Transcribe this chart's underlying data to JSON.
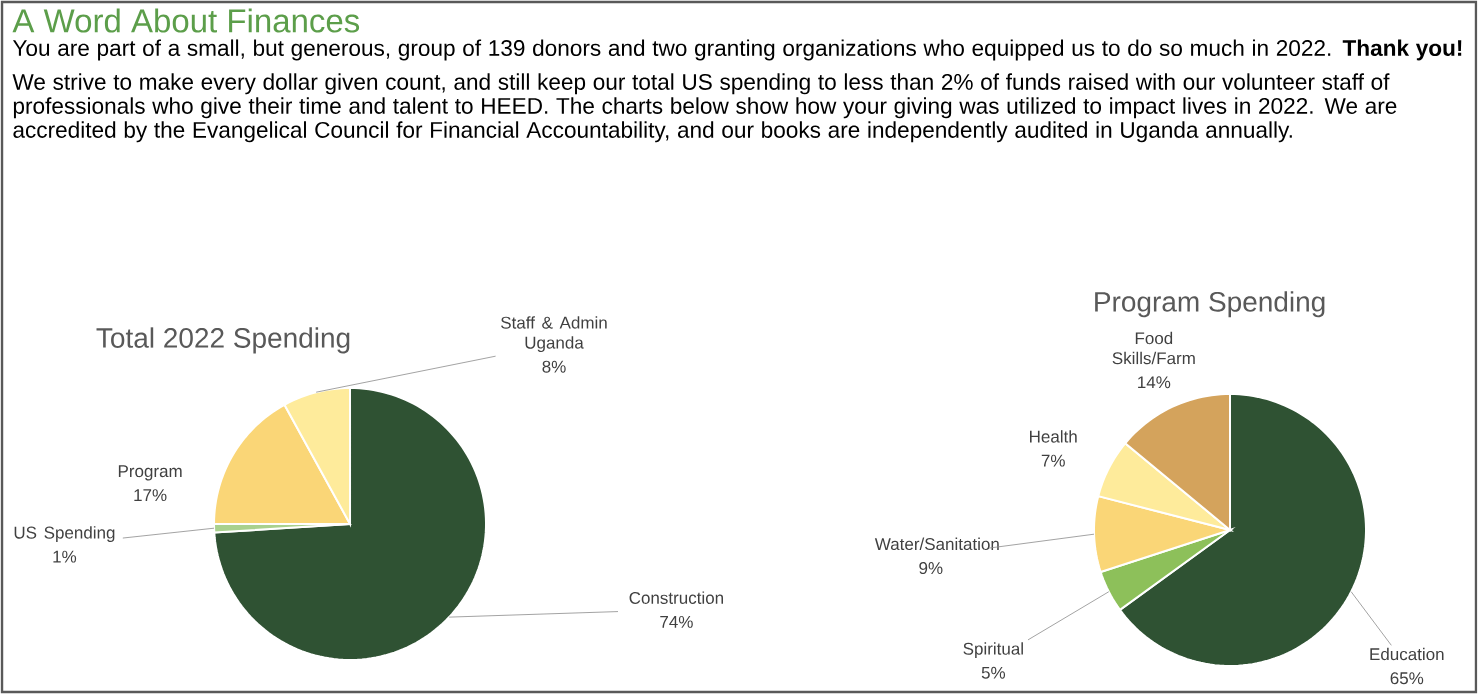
{
  "chart_data": [
    {
      "type": "other",
      "title": "A Word About Finances",
      "annotations": [
        "You are part of a small, but generous, group of 139 donors and two granting organizations who equipped us to do so much in 2022.  **Thank you!**",
        "We strive to make every dollar given count, and still keep our total US spending to less than 2% of funds raised with our volunteer staff of professionals who give their time and talent to HEED. The charts below show how your giving was utilized to impact lives in 2022. We are accredited by the Evangelical Council for Financial Accountability, and our books are independently audited in Uganda annually."
      ]
    },
    {
      "type": "pie",
      "title": "Total 2022 Spending",
      "categories": [
        "Construction",
        "US Spending",
        "Program",
        "Staff & Admin Uganda"
      ],
      "values": [
        74,
        1,
        17,
        8
      ],
      "value_labels": [
        "74%",
        "1%",
        "17%",
        "8%"
      ],
      "colors": [
        "#2f5233",
        "#a9d18e",
        "#fad677",
        "#feeb9b"
      ]
    },
    {
      "type": "pie",
      "title": "Program Spending",
      "categories": [
        "Education",
        "Spiritual",
        "Water/Sanitation",
        "Health",
        "Food Skills/Farm"
      ],
      "values": [
        65,
        5,
        9,
        7,
        14
      ],
      "value_labels": [
        "65%",
        "5%",
        "9%",
        "7%",
        "14%"
      ],
      "colors": [
        "#2f5233",
        "#8dc05a",
        "#fad677",
        "#feeb9b",
        "#d4a35c"
      ]
    }
  ]
}
